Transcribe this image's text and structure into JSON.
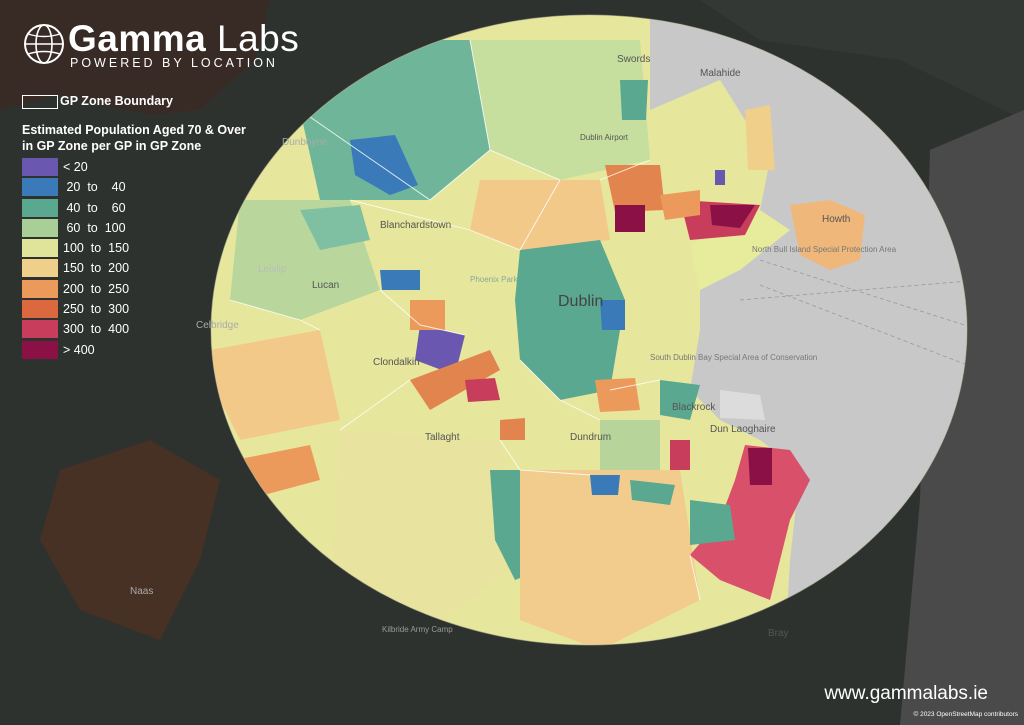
{
  "brand": {
    "name_bold": "Gamma",
    "name_light": " Labs",
    "tagline": "POWERED BY LOCATION"
  },
  "legend": {
    "boundary_label": "GP Zone Boundary",
    "title_line1": "Estimated Population Aged 70 & Over",
    "title_line2": "in GP Zone per GP in GP Zone",
    "classes": [
      {
        "label": "< 20",
        "color": "#6a57b0"
      },
      {
        "label": " 20  to    40",
        "color": "#3b7ab8"
      },
      {
        "label": " 40  to    60",
        "color": "#5aa890"
      },
      {
        "label": " 60  to  100",
        "color": "#a8cf95"
      },
      {
        "label": "100  to  150",
        "color": "#e0e39a"
      },
      {
        "label": "150  to  200",
        "color": "#f0cf8a"
      },
      {
        "label": "200  to  250",
        "color": "#ec9a5c"
      },
      {
        "label": "250  to  300",
        "color": "#dc6840"
      },
      {
        "label": "300  to  400",
        "color": "#c83c5c"
      },
      {
        "label": "> 400",
        "color": "#8a1045"
      }
    ]
  },
  "place_labels": {
    "swords": "Swords",
    "malahide": "Malahide",
    "dublin_airport": "Dublin Airport",
    "blanchardstown": "Blanchardstown",
    "leixlip": "Leixlip",
    "lucan": "Lucan",
    "phoenix_park": "Phoenix Park",
    "dublin": "Dublin",
    "clondalkin": "Clondalkin",
    "tallaght": "Tallaght",
    "dundrum": "Dundrum",
    "blackrock": "Blackrock",
    "dun_laoghaire": "Dun Laoghaire",
    "howth": "Howth",
    "north_bull": "North Bull Island Special Protection Area",
    "south_dublin_bay": "South Dublin Bay Special Area of Conservation",
    "kilbride": "Kilbride Army Camp",
    "bray": "Bray",
    "celbridge": "Celbridge",
    "naas": "Naas",
    "dunboyne": "Dunboyne"
  },
  "footer": {
    "url": "www.gammalabs.ie",
    "credit": "© 2023 OpenStreetMap contributors"
  },
  "colors": {
    "background_land": "#2e322e",
    "sea_grey": "#c8c8c8",
    "base_circle": "#e6e79c"
  }
}
